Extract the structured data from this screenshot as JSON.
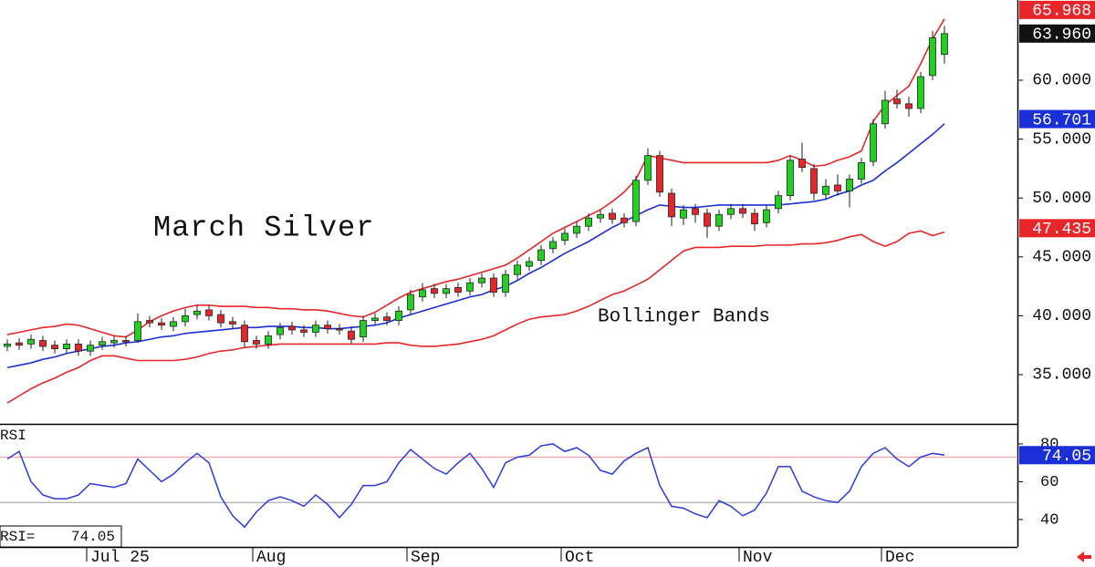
{
  "chart_data": [
    {
      "type": "candlestick",
      "title": "March Silver",
      "annotation": "Bollinger Bands",
      "categories": [
        null,
        null,
        null,
        null,
        null,
        null,
        null,
        "Jul 25",
        null,
        null,
        null,
        null,
        null,
        null,
        null,
        null,
        null,
        null,
        null,
        null,
        null,
        "Aug",
        null,
        null,
        null,
        null,
        null,
        null,
        null,
        null,
        null,
        null,
        null,
        null,
        "Sep",
        null,
        null,
        null,
        null,
        null,
        null,
        null,
        null,
        null,
        null,
        null,
        null,
        "Oct",
        null,
        null,
        null,
        null,
        null,
        null,
        null,
        null,
        null,
        null,
        null,
        null,
        null,
        null,
        "Nov",
        null,
        null,
        null,
        null,
        null,
        null,
        null,
        null,
        null,
        null,
        null,
        "Dec",
        null,
        null,
        null,
        null,
        null
      ],
      "open": [
        37.4,
        37.7,
        37.6,
        37.9,
        37.5,
        37.2,
        37.6,
        37.0,
        37.5,
        37.7,
        37.9,
        37.9,
        39.6,
        39.4,
        39.1,
        39.5,
        40.1,
        40.5,
        40.1,
        39.5,
        39.2,
        37.9,
        37.6,
        38.4,
        39.1,
        38.8,
        38.6,
        39.2,
        38.9,
        38.7,
        38.2,
        39.6,
        39.9,
        39.6,
        40.5,
        41.6,
        42.3,
        41.9,
        42.4,
        42.1,
        42.8,
        43.2,
        42.0,
        43.5,
        44.2,
        44.7,
        45.7,
        46.4,
        47.0,
        47.6,
        48.3,
        48.7,
        48.3,
        48.0,
        51.5,
        53.6,
        50.4,
        48.3,
        49.1,
        48.7,
        47.6,
        48.6,
        49.1,
        48.7,
        47.9,
        49.1,
        50.2,
        53.3,
        52.5,
        50.3,
        51.1,
        50.6,
        51.6,
        53.1,
        56.3,
        58.4,
        58.0,
        57.6,
        60.4,
        62.2
      ],
      "high": [
        38.0,
        38.1,
        38.4,
        38.3,
        37.9,
        38.0,
        38.0,
        37.9,
        38.2,
        38.3,
        38.3,
        40.2,
        40.0,
        39.8,
        39.9,
        40.6,
        40.9,
        40.9,
        40.5,
        39.9,
        39.6,
        38.3,
        38.7,
        39.4,
        39.5,
        39.2,
        39.6,
        39.6,
        39.3,
        39.1,
        40.0,
        40.2,
        40.3,
        40.8,
        42.2,
        42.8,
        42.7,
        42.7,
        42.8,
        43.2,
        43.6,
        43.6,
        43.9,
        44.7,
        45.0,
        46.0,
        46.7,
        47.4,
        48.0,
        48.7,
        49.0,
        49.1,
        48.7,
        51.9,
        54.2,
        54.0,
        50.8,
        49.4,
        49.5,
        49.1,
        49.0,
        49.5,
        49.5,
        49.1,
        49.4,
        50.6,
        53.6,
        54.7,
        52.9,
        51.6,
        52.0,
        52.0,
        53.4,
        56.7,
        59.1,
        59.2,
        58.6,
        60.7,
        64.2,
        64.6
      ],
      "low": [
        37.0,
        37.1,
        37.2,
        37.0,
        36.8,
        36.8,
        36.6,
        36.6,
        37.1,
        37.3,
        37.4,
        37.7,
        39.0,
        38.8,
        38.7,
        39.1,
        39.7,
        39.6,
        39.0,
        38.9,
        37.3,
        37.2,
        37.2,
        38.0,
        38.4,
        38.2,
        38.2,
        38.5,
        38.4,
        37.6,
        37.8,
        39.2,
        39.2,
        39.2,
        40.1,
        41.2,
        41.5,
        41.5,
        41.6,
        41.7,
        42.4,
        41.6,
        41.6,
        43.1,
        43.8,
        44.3,
        45.3,
        46.0,
        46.6,
        47.2,
        47.9,
        47.8,
        47.5,
        47.6,
        51.1,
        50.1,
        47.6,
        47.7,
        47.9,
        46.6,
        47.2,
        48.2,
        48.3,
        47.2,
        47.5,
        48.7,
        49.8,
        52.2,
        49.8,
        49.9,
        50.2,
        49.2,
        51.2,
        52.7,
        55.9,
        57.6,
        56.9,
        57.2,
        60.0,
        61.4
      ],
      "close": [
        37.6,
        37.5,
        38.0,
        37.4,
        37.2,
        37.6,
        37.0,
        37.5,
        37.8,
        37.9,
        37.8,
        39.5,
        39.4,
        39.2,
        39.5,
        40.0,
        40.4,
        40.0,
        39.4,
        39.3,
        37.8,
        37.6,
        38.3,
        39.0,
        38.8,
        38.6,
        39.2,
        38.9,
        38.8,
        38.0,
        39.6,
        39.8,
        39.6,
        40.4,
        41.8,
        42.2,
        41.9,
        42.3,
        42.0,
        42.8,
        43.2,
        42.0,
        43.5,
        44.3,
        44.6,
        45.6,
        46.3,
        47.0,
        47.6,
        48.3,
        48.6,
        48.2,
        47.9,
        51.5,
        53.6,
        50.5,
        48.4,
        49.0,
        48.6,
        47.6,
        48.6,
        49.1,
        48.7,
        47.8,
        49.0,
        50.2,
        53.2,
        52.6,
        50.4,
        51.0,
        50.6,
        51.6,
        53.0,
        56.3,
        58.3,
        58.0,
        57.6,
        60.3,
        63.6,
        63.96
      ],
      "up_color": "#22d022",
      "down_color": "#e8262a",
      "series": [
        {
          "color": "#e8262a",
          "values": [
            38.4,
            38.6,
            38.8,
            39.0,
            39.1,
            39.3,
            39.2,
            38.9,
            38.6,
            38.3,
            38.2,
            38.8,
            39.5,
            40.0,
            40.4,
            40.7,
            40.9,
            40.9,
            40.8,
            40.8,
            40.8,
            40.7,
            40.7,
            40.6,
            40.6,
            40.5,
            40.5,
            40.4,
            40.2,
            40.0,
            39.9,
            40.3,
            40.9,
            41.5,
            42.0,
            42.3,
            42.6,
            42.9,
            43.1,
            43.4,
            43.7,
            44.0,
            44.3,
            44.9,
            45.6,
            46.3,
            47.0,
            47.5,
            48.0,
            48.5,
            49.0,
            49.7,
            50.5,
            51.6,
            53.6,
            53.4,
            53.2,
            53.0,
            53.0,
            53.0,
            53.0,
            53.0,
            53.0,
            53.0,
            53.0,
            53.2,
            53.6,
            53.2,
            52.7,
            52.8,
            53.2,
            53.5,
            54.0,
            56.5,
            57.9,
            58.7,
            59.5,
            61.4,
            63.5,
            65.2
          ]
        },
        {
          "color": "#1a2fd8",
          "values": [
            35.6,
            35.8,
            36.0,
            36.3,
            36.5,
            36.8,
            37.0,
            37.2,
            37.4,
            37.5,
            37.7,
            37.8,
            38.0,
            38.2,
            38.3,
            38.5,
            38.6,
            38.7,
            38.8,
            38.9,
            39.0,
            39.0,
            39.1,
            39.1,
            39.1,
            39.0,
            39.0,
            38.9,
            38.9,
            39.0,
            39.1,
            39.2,
            39.4,
            39.8,
            40.1,
            40.4,
            40.7,
            41.0,
            41.3,
            41.6,
            41.8,
            42.2,
            42.5,
            43.0,
            43.6,
            44.1,
            44.7,
            45.3,
            45.8,
            46.3,
            46.9,
            47.5,
            48.0,
            48.5,
            49.0,
            49.4,
            49.3,
            49.2,
            49.2,
            49.3,
            49.4,
            49.4,
            49.4,
            49.4,
            49.4,
            49.4,
            49.5,
            49.6,
            49.7,
            49.9,
            50.3,
            50.6,
            51.1,
            51.5,
            52.3,
            53.0,
            53.8,
            54.6,
            55.4,
            56.3
          ]
        },
        {
          "color": "#e8262a",
          "values": [
            32.6,
            33.2,
            33.8,
            34.3,
            34.7,
            35.2,
            35.6,
            36.2,
            36.6,
            36.6,
            36.4,
            36.2,
            36.2,
            36.2,
            36.2,
            36.3,
            36.5,
            36.8,
            37.0,
            37.1,
            37.3,
            37.4,
            37.5,
            37.6,
            37.6,
            37.6,
            37.6,
            37.6,
            37.6,
            37.6,
            37.6,
            37.6,
            37.7,
            37.7,
            37.5,
            37.4,
            37.4,
            37.5,
            37.6,
            37.8,
            38.0,
            38.3,
            38.8,
            39.3,
            39.7,
            39.9,
            40.0,
            40.1,
            40.4,
            40.8,
            41.3,
            41.8,
            42.1,
            42.6,
            43.1,
            43.9,
            44.7,
            45.5,
            45.8,
            45.8,
            45.8,
            45.9,
            45.9,
            45.9,
            46.0,
            46.0,
            46.0,
            46.1,
            46.1,
            46.2,
            46.4,
            46.7,
            46.9,
            46.3,
            45.9,
            46.3,
            47.0,
            47.2,
            46.8,
            47.1
          ]
        }
      ],
      "ylim": [
        30.82,
        66.81
      ],
      "yticks": [
        {
          "value": 35,
          "label": "35.000"
        },
        {
          "value": 40,
          "label": "40.000"
        },
        {
          "value": 45,
          "label": "45.000"
        },
        {
          "value": 50,
          "label": "50.000"
        },
        {
          "value": 55,
          "label": "55.000"
        },
        {
          "value": 60,
          "label": "60.000"
        }
      ],
      "price_tags": [
        {
          "value": 65.968,
          "color": "#e8262a"
        },
        {
          "value": 63.96,
          "label": "63.960",
          "color": "#111111"
        },
        {
          "value": 56.701,
          "color": "#1a2fd8"
        },
        {
          "value": 47.435,
          "color": "#e8262a"
        }
      ]
    },
    {
      "type": "line",
      "title": "RSI",
      "readout_label": "RSI=",
      "color": "#2a3ce0",
      "values": [
        72,
        76,
        60,
        53,
        51,
        51,
        53,
        59,
        58,
        57,
        59,
        72,
        66,
        60,
        64,
        70,
        75,
        70,
        52,
        42,
        36,
        44,
        50,
        52,
        50,
        47,
        53,
        48,
        41,
        48,
        58,
        58,
        60,
        70,
        77,
        72,
        67,
        64,
        70,
        75,
        67,
        57,
        70,
        73,
        74,
        79,
        80,
        76,
        78,
        74,
        66,
        64,
        71,
        75,
        78,
        58,
        47,
        46,
        43,
        41,
        50,
        47,
        42,
        45,
        54,
        68,
        68,
        55,
        52,
        50,
        49,
        55,
        68,
        75,
        78,
        72,
        68,
        73,
        75,
        74.05
      ],
      "ylim": [
        25.5,
        90.1
      ],
      "yticks": [
        40,
        60,
        80
      ],
      "ref_lines": [
        {
          "value": 73,
          "color": "#f2a0a0"
        },
        {
          "value": 49,
          "color": "#9a9a9a"
        }
      ],
      "tag_color": "#1a2fd8"
    }
  ]
}
